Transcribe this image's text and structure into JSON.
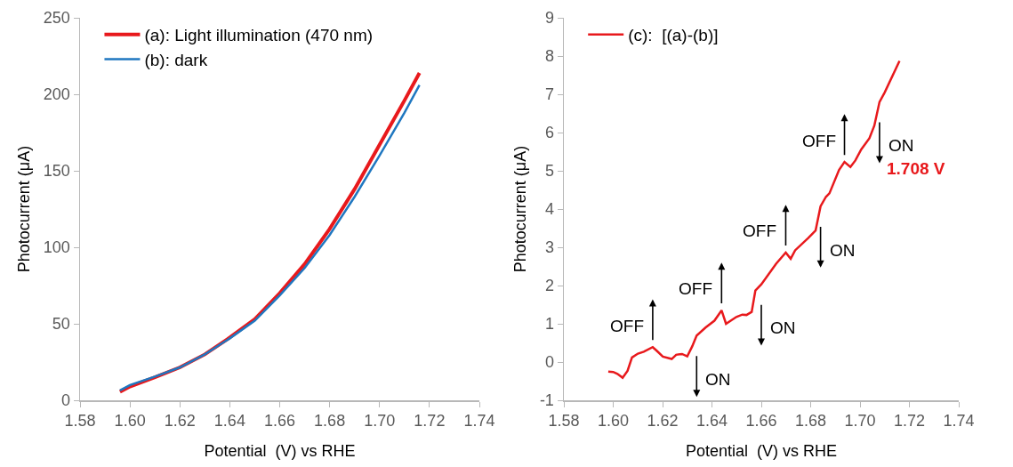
{
  "chart_data": [
    {
      "type": "line",
      "xlabel": "Potential  (V) vs RHE",
      "ylabel": "Photocurrent (μA)",
      "xlim": [
        1.58,
        1.74
      ],
      "xticks": [
        {
          "value": 1.58,
          "label": "1.58"
        },
        {
          "value": 1.6,
          "label": "1.60"
        },
        {
          "value": 1.62,
          "label": "1.62"
        },
        {
          "value": 1.64,
          "label": "1.64"
        },
        {
          "value": 1.66,
          "label": "1.66"
        },
        {
          "value": 1.68,
          "label": "1.68"
        },
        {
          "value": 1.7,
          "label": "1.70"
        },
        {
          "value": 1.72,
          "label": "1.72"
        },
        {
          "value": 1.74,
          "label": "1.74"
        }
      ],
      "ylim": [
        0,
        250
      ],
      "yticks": [
        0,
        50,
        100,
        150,
        200,
        250
      ],
      "grid": false,
      "legend": "top left",
      "marker": "none",
      "line_style": "solid",
      "x": [
        1.596,
        1.6,
        1.61,
        1.62,
        1.63,
        1.64,
        1.65,
        1.66,
        1.67,
        1.68,
        1.69,
        1.7,
        1.71,
        1.716
      ],
      "series": [
        {
          "name": "(a): Light illumination (470 nm)",
          "color": "#e8191c",
          "values": [
            5.5,
            9,
            15,
            21.5,
            30,
            41,
            53,
            70,
            89,
            112,
            138,
            167,
            196,
            214
          ]
        },
        {
          "name": "(b): dark",
          "color": "#1f77c0",
          "values": [
            6.5,
            10,
            15.5,
            21.5,
            30,
            40.5,
            52,
            68.5,
            86.5,
            108,
            133,
            160,
            188,
            206
          ]
        }
      ]
    },
    {
      "type": "line",
      "xlabel": "Potential  (V) vs RHE",
      "ylabel": "Photocurrent (μA)",
      "xlim": [
        1.58,
        1.74
      ],
      "xticks": [
        {
          "value": 1.58,
          "label": "1.58"
        },
        {
          "value": 1.6,
          "label": "1.60"
        },
        {
          "value": 1.62,
          "label": "1.62"
        },
        {
          "value": 1.64,
          "label": "1.64"
        },
        {
          "value": 1.66,
          "label": "1.66"
        },
        {
          "value": 1.68,
          "label": "1.68"
        },
        {
          "value": 1.7,
          "label": "1.70"
        },
        {
          "value": 1.72,
          "label": "1.72"
        },
        {
          "value": 1.74,
          "label": "1.74"
        }
      ],
      "ylim": [
        -1,
        9
      ],
      "yticks": [
        -1,
        0,
        1,
        2,
        3,
        4,
        5,
        6,
        7,
        8,
        9
      ],
      "grid": false,
      "legend": "top left",
      "marker": "none",
      "line_style": "solid",
      "x": [
        1.598,
        1.6,
        1.6017,
        1.6038,
        1.6058,
        1.6076,
        1.61,
        1.6124,
        1.616,
        1.6177,
        1.6201,
        1.6237,
        1.6255,
        1.6279,
        1.63,
        1.632,
        1.6338,
        1.6374,
        1.641,
        1.6439,
        1.6457,
        1.6499,
        1.6523,
        1.654,
        1.6561,
        1.6576,
        1.66,
        1.666,
        1.6699,
        1.6719,
        1.6737,
        1.679,
        1.682,
        1.684,
        1.6862,
        1.6876,
        1.6915,
        1.6937,
        1.6961,
        1.6981,
        1.7005,
        1.7038,
        1.7058,
        1.7079,
        1.71,
        1.716
      ],
      "series": [
        {
          "name": "(c):  [(a)-(b)]",
          "color": "#e8191c",
          "values": [
            -0.25,
            -0.26,
            -0.31,
            -0.41,
            -0.23,
            0.12,
            0.22,
            0.27,
            0.39,
            0.29,
            0.14,
            0.08,
            0.19,
            0.21,
            0.15,
            0.41,
            0.69,
            0.9,
            1.08,
            1.35,
            1.0,
            1.18,
            1.24,
            1.23,
            1.31,
            1.87,
            2.03,
            2.57,
            2.86,
            2.7,
            2.92,
            3.24,
            3.44,
            4.07,
            4.32,
            4.41,
            5.02,
            5.23,
            5.1,
            5.27,
            5.56,
            5.85,
            6.18,
            6.8,
            7.05,
            7.87
          ]
        }
      ],
      "annotations": [
        {
          "text": "OFF",
          "x": 1.616,
          "y": 0.39
        },
        {
          "text": "ON",
          "x": 1.6338,
          "y": 0.69
        },
        {
          "text": "OFF",
          "x": 1.6439,
          "y": 1.35
        },
        {
          "text": "ON",
          "x": 1.66,
          "y": 2.03
        },
        {
          "text": "OFF",
          "x": 1.6699,
          "y": 2.86
        },
        {
          "text": "ON",
          "x": 1.684,
          "y": 4.07
        },
        {
          "text": "OFF",
          "x": 1.6937,
          "y": 5.23
        },
        {
          "text": "ON",
          "x": 1.7079,
          "y": 6.8
        },
        "1.708 V"
      ]
    }
  ]
}
